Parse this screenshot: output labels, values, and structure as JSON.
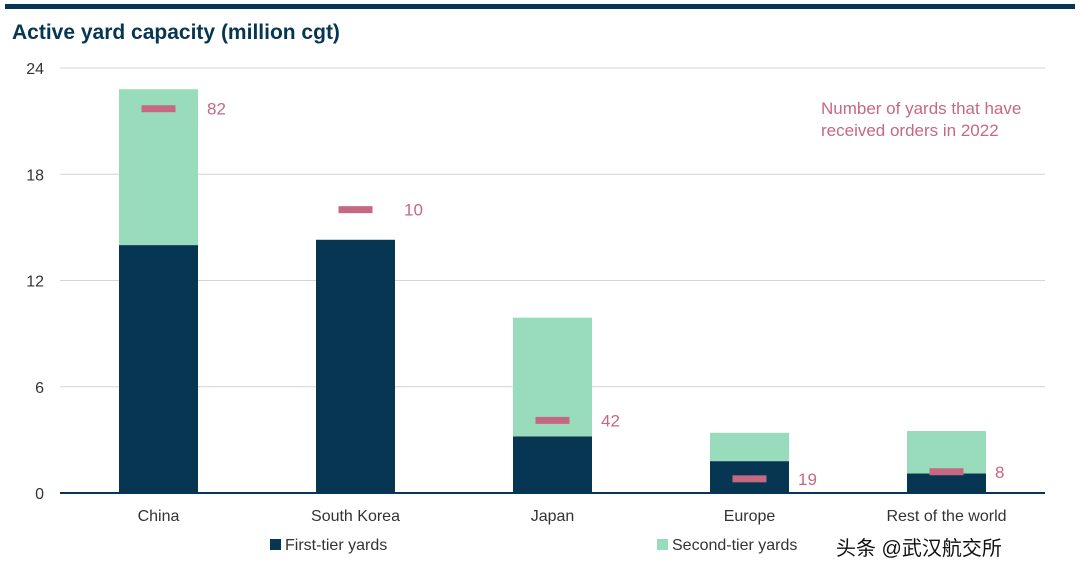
{
  "header": {
    "title": "Active yard capacity (million cgt)"
  },
  "chart_data": {
    "type": "bar",
    "stacked": true,
    "title": "Active yard capacity (million cgt)",
    "categories": [
      "China",
      "South Korea",
      "Japan",
      "Europe",
      "Rest of the world"
    ],
    "series": [
      {
        "name": "First-tier yards",
        "color": "#063652",
        "values": [
          14.0,
          14.3,
          3.2,
          1.8,
          1.1
        ]
      },
      {
        "name": "Second-tier yards",
        "color": "#98dcbc",
        "values": [
          8.8,
          0.0,
          6.7,
          1.6,
          2.4
        ]
      }
    ],
    "yard_marker": {
      "label": "Number of yards that have received orders in 2022",
      "color": "#c66882",
      "counts": [
        "82",
        "10",
        "42",
        "19",
        "8"
      ],
      "marker_values": [
        21.7,
        16.0,
        4.1,
        0.8,
        1.2
      ]
    },
    "ylim": [
      0,
      24
    ],
    "yticks": [
      0,
      6,
      12,
      18,
      24
    ],
    "xlabel": "",
    "ylabel": "",
    "legend": [
      "First-tier yards",
      "Second-tier yards"
    ]
  },
  "annotation": {
    "line1": "Number of yards that have",
    "line2": "received orders in 2022"
  },
  "watermark": {
    "text": "头条 @武汉航交所"
  }
}
